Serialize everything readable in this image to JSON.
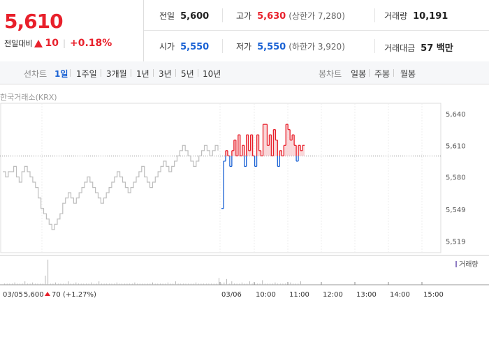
{
  "quote": {
    "price": "5,610",
    "change_label": "전일대비",
    "change_value": "10",
    "change_pct": "+0.18%"
  },
  "stats": {
    "prev_close": {
      "label": "전일",
      "value": "5,600"
    },
    "open": {
      "label": "시가",
      "value": "5,550"
    },
    "high": {
      "label": "고가",
      "value": "5,630",
      "sub": "(상한가 7,280)"
    },
    "low": {
      "label": "저가",
      "value": "5,550",
      "sub": "(하한가 3,920)"
    },
    "volume": {
      "label": "거래량",
      "value": "10,191"
    },
    "amount": {
      "label": "거래대금",
      "value": "57 백만"
    }
  },
  "tabs": {
    "line_label": "선차트",
    "line_items": [
      "1일",
      "1주일",
      "3개월",
      "1년",
      "3년",
      "5년",
      "10년"
    ],
    "active": "1일",
    "candle_label": "봉차트",
    "candle_items": [
      "일봉",
      "주봉",
      "월봉"
    ]
  },
  "source": "한국거래소(KRX)",
  "legend_volume": "거래량",
  "prev_day_note": {
    "date": "03/05",
    "close": "5,600",
    "change": "70",
    "pct": "(+1.27%)"
  },
  "colors": {
    "up": "#e8202b",
    "down": "#1a62d4",
    "prev": "#bdbdbd",
    "volume_legend": "#8e7cc3"
  },
  "chart_data": {
    "type": "line",
    "title": "",
    "prev_close_line": 5600,
    "ylim": [
      5508,
      5650
    ],
    "y_ticks": [
      5640,
      5610,
      5580,
      5549,
      5519
    ],
    "x_ticks": [
      "03/05",
      "03/06",
      "10:00",
      "11:00",
      "12:00",
      "13:00",
      "14:00",
      "15:00"
    ],
    "series": [
      {
        "values": [
          5585,
          5580,
          5585,
          5585,
          5590,
          5580,
          5575,
          5585,
          5590,
          5585,
          5580,
          5575,
          5570,
          5560,
          5550,
          5545,
          5540,
          5535,
          5530,
          5535,
          5540,
          5545,
          5555,
          5560,
          5565,
          5560,
          5555,
          5560,
          5565,
          5570,
          5575,
          5580,
          5575,
          5570,
          5565,
          5560,
          5555,
          5560,
          5565,
          5570,
          5575,
          5580,
          5585,
          5580,
          5575,
          5570,
          5565,
          5570,
          5575,
          5580,
          5585,
          5590,
          5580,
          5575,
          5570,
          5575,
          5580,
          5585,
          5590,
          5595,
          5590,
          5585,
          5590,
          5595,
          5600,
          5605,
          5610,
          5605,
          5600,
          5595,
          5590,
          5595,
          5600,
          5605,
          5610,
          5605,
          5600,
          5605,
          5610,
          5605
        ]
      },
      {
        "values": [
          5550,
          5595,
          5605,
          5600,
          5590,
          5605,
          5615,
          5600,
          5620,
          5600,
          5610,
          5590,
          5620,
          5605,
          5620,
          5600,
          5590,
          5620,
          5605,
          5600,
          5630,
          5630,
          5610,
          5620,
          5600,
          5625,
          5615,
          5590,
          5605,
          5600,
          5610,
          5630,
          5625,
          5615,
          5620,
          5610,
          5595,
          5610,
          5605,
          5610
        ]
      }
    ],
    "volume": [
      1,
      1,
      1,
      1,
      2,
      1,
      1,
      1,
      3,
      1,
      1,
      2,
      1,
      1,
      1,
      1,
      8,
      22,
      1,
      1,
      2,
      1,
      1,
      1,
      1,
      3,
      1,
      1,
      2,
      1,
      1,
      1,
      1,
      1,
      2,
      1,
      1,
      3,
      1,
      1,
      1,
      1,
      1,
      1,
      2,
      1,
      1,
      1,
      1,
      1,
      1,
      2,
      1,
      1,
      1,
      1,
      1,
      1,
      2,
      1,
      1,
      1,
      1,
      1,
      2,
      1,
      1,
      3,
      1,
      1,
      1,
      1,
      1,
      1,
      1,
      2,
      1,
      1,
      1,
      1,
      1,
      1,
      1,
      1,
      6,
      1,
      2,
      5,
      1,
      3,
      1,
      1,
      1,
      2,
      1,
      1,
      3,
      1,
      1,
      1,
      1,
      4,
      1,
      1,
      1,
      1,
      2,
      1,
      1,
      1,
      1,
      1,
      2,
      1,
      1,
      1,
      3
    ]
  }
}
